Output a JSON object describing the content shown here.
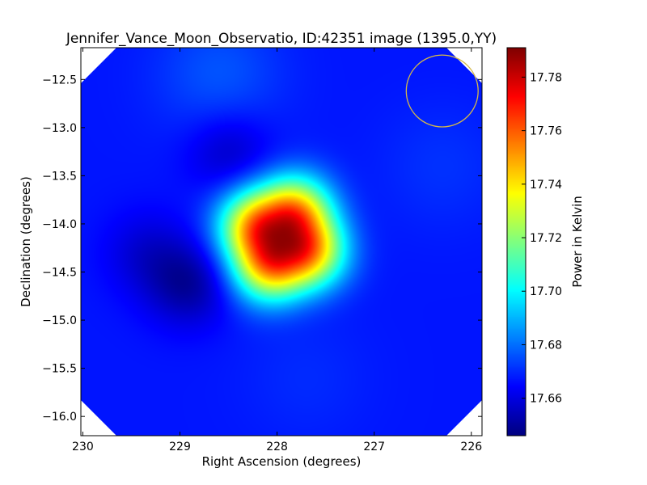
{
  "chart_data": {
    "type": "heatmap",
    "title": "Jennifer_Vance_Moon_Observatio, ID:42351 image (1395.0,YY)",
    "xlabel": "Right Ascension (degrees)",
    "ylabel": "Declination (degrees)",
    "xlim": [
      230.02,
      225.89
    ],
    "ylim": [
      -16.2,
      -12.17
    ],
    "x_ticks": [
      {
        "value": 230,
        "label": "230"
      },
      {
        "value": 229,
        "label": "229"
      },
      {
        "value": 228,
        "label": "228"
      },
      {
        "value": 227,
        "label": "227"
      },
      {
        "value": 226,
        "label": "226"
      }
    ],
    "y_ticks": [
      {
        "value": -12.5,
        "label": "−12.5"
      },
      {
        "value": -13.0,
        "label": "−13.0"
      },
      {
        "value": -13.5,
        "label": "−13.5"
      },
      {
        "value": -14.0,
        "label": "−14.0"
      },
      {
        "value": -14.5,
        "label": "−14.5"
      },
      {
        "value": -15.0,
        "label": "−15.0"
      },
      {
        "value": -15.5,
        "label": "−15.5"
      },
      {
        "value": -16.0,
        "label": "−16.0"
      }
    ],
    "colorbar": {
      "label": "Power in Kelvin",
      "colormap": "jet",
      "range": [
        17.646,
        17.791
      ],
      "ticks": [
        {
          "value": 17.66,
          "label": "17.66"
        },
        {
          "value": 17.68,
          "label": "17.68"
        },
        {
          "value": 17.7,
          "label": "17.70"
        },
        {
          "value": 17.72,
          "label": "17.72"
        },
        {
          "value": 17.74,
          "label": "17.74"
        },
        {
          "value": 17.76,
          "label": "17.76"
        },
        {
          "value": 17.78,
          "label": "17.78"
        }
      ]
    },
    "background_level": 17.667,
    "features": [
      {
        "kind": "peak",
        "ra": 227.95,
        "dec": -14.15,
        "peak_value": 17.789,
        "extent_deg": 0.65
      },
      {
        "kind": "dip",
        "ra": 228.92,
        "dec": -14.62,
        "value": 17.65
      },
      {
        "kind": "dip",
        "ra": 229.35,
        "dec": -14.3,
        "value": 17.658
      },
      {
        "kind": "dip",
        "ra": 228.5,
        "dec": -13.25,
        "value": 17.656
      },
      {
        "kind": "bump",
        "ra": 228.6,
        "dec": -12.45,
        "value": 17.676
      },
      {
        "kind": "bump",
        "ra": 226.3,
        "dec": -13.4,
        "value": 17.671
      },
      {
        "kind": "bump",
        "ra": 227.7,
        "dec": -15.6,
        "value": 17.67
      }
    ],
    "beam_circle": {
      "ra": 226.3,
      "dec": -12.62,
      "radius_deg": 0.37,
      "color": "#d4b84a"
    },
    "masked_corners": true,
    "grid": false
  }
}
